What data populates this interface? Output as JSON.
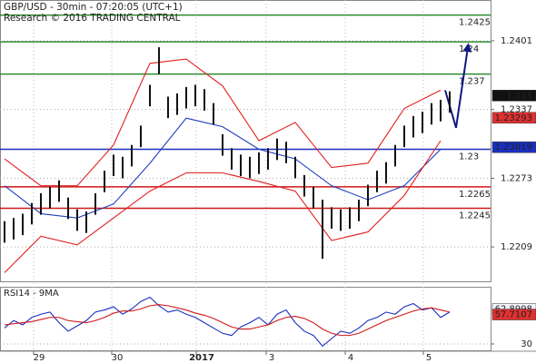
{
  "chart_data": [
    {
      "type": "ohlc",
      "title": "GBP/USD - 30min - 07:20:05 (UTC+1)",
      "subtitle": "Research © 2016 TRADING CENTRAL",
      "x": [
        0,
        1,
        2,
        3,
        4,
        5,
        6,
        7,
        8,
        9,
        10,
        11,
        12,
        13,
        14,
        15,
        16,
        17,
        18,
        19,
        20,
        21,
        22,
        23,
        24,
        25,
        26,
        27,
        28,
        29,
        30,
        31,
        32,
        33,
        34,
        35,
        36,
        37,
        38,
        39,
        40,
        41,
        42,
        43,
        44,
        45,
        46,
        47,
        48,
        49
      ],
      "high": [
        1.2233,
        1.2236,
        1.224,
        1.225,
        1.2259,
        1.2265,
        1.2271,
        1.2255,
        1.2244,
        1.2242,
        1.2259,
        1.228,
        1.2295,
        1.2293,
        1.2304,
        1.2322,
        1.236,
        1.2395,
        1.2349,
        1.2352,
        1.2358,
        1.236,
        1.2356,
        1.2343,
        1.2314,
        1.2301,
        1.2295,
        1.2293,
        1.2297,
        1.2301,
        1.231,
        1.2307,
        1.2293,
        1.2276,
        1.2265,
        1.2253,
        1.2246,
        1.2244,
        1.2246,
        1.2253,
        1.2267,
        1.228,
        1.2288,
        1.2304,
        1.2322,
        1.2331,
        1.2335,
        1.2343,
        1.2346,
        1.2354
      ],
      "low": [
        1.2213,
        1.2216,
        1.222,
        1.223,
        1.2239,
        1.2245,
        1.2251,
        1.2235,
        1.2224,
        1.2222,
        1.2239,
        1.226,
        1.2275,
        1.2273,
        1.2284,
        1.2302,
        1.234,
        1.237,
        1.2329,
        1.2332,
        1.2338,
        1.234,
        1.2336,
        1.2323,
        1.2294,
        1.2281,
        1.2275,
        1.2273,
        1.2277,
        1.2281,
        1.229,
        1.2287,
        1.2273,
        1.2256,
        1.2245,
        1.2198,
        1.2226,
        1.2224,
        1.2226,
        1.2233,
        1.2247,
        1.226,
        1.2268,
        1.2284,
        1.2302,
        1.2311,
        1.2315,
        1.2323,
        1.2326,
        1.2334
      ],
      "bar_color": "#111111",
      "series": [
        {
          "color": "#e02020",
          "x": [
            0,
            4,
            8,
            12,
            16,
            20,
            24,
            28,
            32,
            36,
            40,
            44,
            48
          ],
          "values": [
            1.2291,
            1.2266,
            1.2266,
            1.2304,
            1.238,
            1.2384,
            1.2359,
            1.2308,
            1.2325,
            1.2283,
            1.2287,
            1.2338,
            1.2355
          ]
        },
        {
          "color": "#2040c0",
          "x": [
            0,
            4,
            8,
            12,
            16,
            20,
            24,
            28,
            32,
            36,
            40,
            44,
            48
          ],
          "values": [
            1.2266,
            1.224,
            1.2236,
            1.2249,
            1.2287,
            1.2329,
            1.2321,
            1.23,
            1.2291,
            1.2266,
            1.2253,
            1.2266,
            1.23
          ]
        },
        {
          "color": "#e02020",
          "x": [
            0,
            4,
            8,
            12,
            16,
            20,
            24,
            28,
            32,
            36,
            40,
            44,
            48
          ],
          "values": [
            1.2185,
            1.2219,
            1.2211,
            1.2236,
            1.2261,
            1.2278,
            1.2278,
            1.227,
            1.2261,
            1.2215,
            1.2223,
            1.2257,
            1.2308
          ]
        },
        {
          "color": "#101880",
          "arrow": true,
          "x": [
            48.5,
            49.7,
            51
          ],
          "values": [
            1.2355,
            1.232,
            1.2395
          ]
        }
      ],
      "levels": [
        {
          "value": 1.2425,
          "color": "#2e8b2e"
        },
        {
          "value": 1.24,
          "color": "#2e8b2e"
        },
        {
          "value": 1.237,
          "color": "#2e8b2e"
        },
        {
          "value": 1.23,
          "color": "#1a2fc0"
        },
        {
          "value": 1.2265,
          "color": "#d01818"
        },
        {
          "value": 1.2245,
          "color": "#d01818"
        }
      ],
      "badges": [
        {
          "value": 1.235,
          "color": "#111111",
          "text_color": "#ffffff"
        },
        {
          "value": 1.23293,
          "color": "#e03030",
          "text_color": "#111111"
        },
        {
          "value": 1.23019,
          "color": "#1a2fc0",
          "text_color": "#ffffff"
        }
      ],
      "xlim": [
        -0.5,
        53.5
      ],
      "ylim": [
        1.2177,
        1.2439
      ],
      "yticks": [
        1.2401,
        1.2337,
        1.2273,
        1.2209
      ],
      "xticks": [
        {
          "value": 3.2,
          "label": "29"
        },
        {
          "value": 11.8,
          "label": "30"
        },
        {
          "value": 21.1,
          "label": "2017"
        },
        {
          "value": 28.8,
          "label": "3"
        },
        {
          "value": 37.5,
          "label": "4"
        },
        {
          "value": 46.1,
          "label": "5"
        }
      ]
    },
    {
      "type": "line",
      "title": "RSI14 - 9MA",
      "series": [
        {
          "color": "#1a2fc0",
          "x": [
            0,
            1,
            2,
            3,
            4,
            5,
            6,
            7,
            8,
            9,
            10,
            11,
            12,
            13,
            14,
            15,
            16,
            17,
            18,
            19,
            20,
            21,
            22,
            23,
            24,
            25,
            26,
            27,
            28,
            29,
            30,
            31,
            32,
            33,
            34,
            35,
            36,
            37,
            38,
            39,
            40,
            41,
            42,
            43,
            44,
            45,
            46,
            47,
            48,
            49
          ],
          "values": [
            45,
            52,
            48,
            55,
            58,
            60,
            50,
            42,
            47,
            52,
            60,
            62,
            65,
            58,
            63,
            70,
            74,
            66,
            60,
            62,
            58,
            55,
            50,
            45,
            40,
            38,
            46,
            50,
            55,
            48,
            58,
            62,
            50,
            42,
            38,
            28,
            35,
            42,
            40,
            45,
            52,
            55,
            60,
            58,
            65,
            68,
            62,
            64,
            55,
            60
          ]
        },
        {
          "color": "#d01818",
          "x": [
            0,
            1,
            2,
            3,
            4,
            5,
            6,
            7,
            8,
            9,
            10,
            11,
            12,
            13,
            14,
            15,
            16,
            17,
            18,
            19,
            20,
            21,
            22,
            23,
            24,
            25,
            26,
            27,
            28,
            29,
            30,
            31,
            32,
            33,
            34,
            35,
            36,
            37,
            38,
            39,
            40,
            41,
            42,
            43,
            44,
            45,
            46,
            47,
            48,
            49
          ],
          "values": [
            48,
            49,
            50,
            51,
            53,
            55,
            55,
            52,
            51,
            50,
            52,
            55,
            59,
            61,
            61,
            63,
            66,
            67,
            66,
            64,
            62,
            59,
            57,
            54,
            50,
            46,
            44,
            44,
            46,
            48,
            52,
            55,
            56,
            54,
            50,
            44,
            40,
            38,
            38,
            40,
            44,
            48,
            52,
            55,
            58,
            61,
            63,
            64,
            62,
            60
          ]
        }
      ],
      "badges": [
        {
          "value": 62.8998,
          "color": "#f4f4ff",
          "text_color": "#111111"
        },
        {
          "value": 57.7107,
          "color": "#e03030",
          "text_color": "#111111"
        }
      ],
      "ylim": [
        24,
        83
      ],
      "yticks": [
        30
      ]
    }
  ]
}
